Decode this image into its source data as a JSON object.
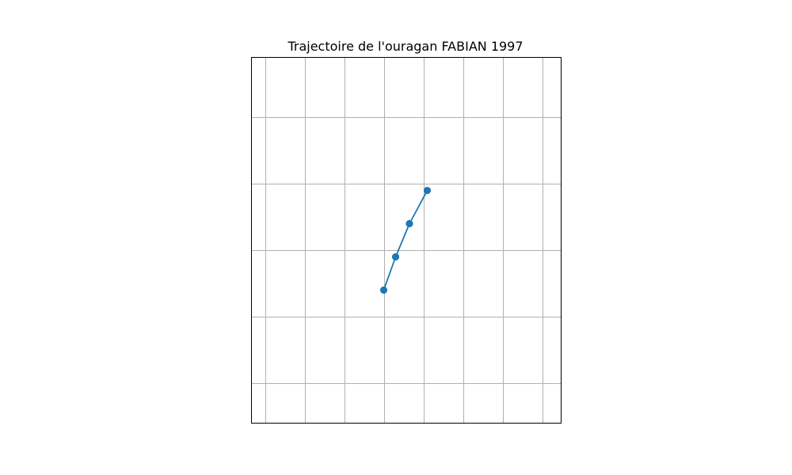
{
  "chart_data": {
    "type": "line",
    "title": "Trajectoire de l'ouragan FABIAN 1997",
    "xlabel": "",
    "ylabel": "",
    "grid": true,
    "xlim": [
      0,
      7.8
    ],
    "ylim": [
      0,
      5.5
    ],
    "x_gridlines": [
      0.33,
      1.33,
      2.33,
      3.33,
      4.33,
      5.33,
      6.33,
      7.33
    ],
    "y_gridlines": [
      0.6,
      1.6,
      2.6,
      3.6,
      4.6
    ],
    "series": [
      {
        "color": "#1f77b4",
        "x": [
          3.33,
          3.63,
          3.98,
          4.43,
          3.98,
          3.63,
          3.33,
          3.63,
          3.98,
          4.43
        ],
        "y": [
          2.0,
          2.5,
          3.0,
          3.5,
          3.0,
          2.5,
          2.0,
          2.5,
          3.0,
          3.5
        ]
      }
    ]
  }
}
